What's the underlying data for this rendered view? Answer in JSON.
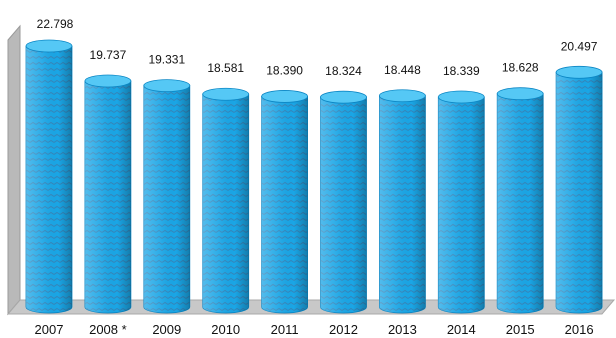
{
  "chart_data": {
    "type": "bar",
    "style": "3d-cylinder",
    "categories": [
      "2007",
      "2008 *",
      "2009",
      "2010",
      "2011",
      "2012",
      "2013",
      "2014",
      "2015",
      "2016"
    ],
    "values": [
      22.798,
      19.737,
      19.331,
      18.581,
      18.39,
      18.324,
      18.448,
      18.339,
      18.628,
      20.497
    ],
    "value_labels": [
      "22.798",
      "19.737",
      "19.331",
      "18.581",
      "18.390",
      "18.324",
      "18.448",
      "18.339",
      "18.628",
      "20.497"
    ],
    "title": "",
    "xlabel": "",
    "ylabel": "",
    "ylim": [
      0,
      25
    ],
    "grid": false,
    "legend": "none",
    "colors": {
      "bar": "#1aa6e6",
      "bar_dark": "#0b86c4",
      "bar_top": "#55c8f5",
      "hatch": "#2f7fb0",
      "wall": "#bdbdbd",
      "wall_dark": "#8f8f8f",
      "floor": "#c9c9c9"
    }
  }
}
